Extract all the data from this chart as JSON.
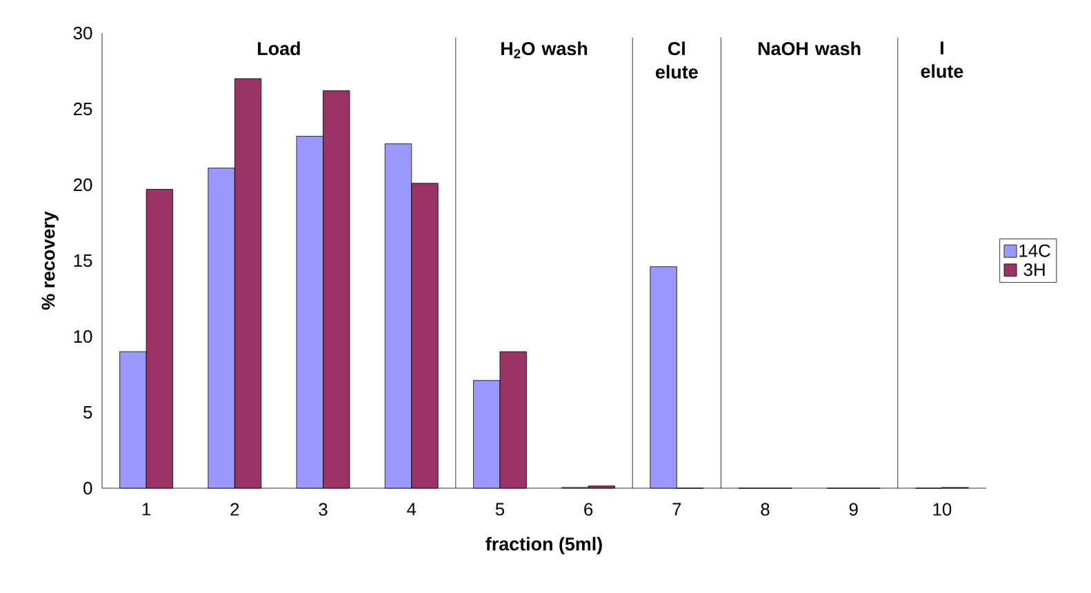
{
  "chart_data": {
    "type": "bar",
    "xlabel": "fraction (5ml)",
    "ylabel": "% recovery",
    "x": [
      1,
      2,
      3,
      4,
      5,
      6,
      7,
      8,
      9,
      10
    ],
    "xlim": [
      0.5,
      10.5
    ],
    "xticks": [
      1,
      2,
      3,
      4,
      5,
      6,
      7,
      8,
      9,
      10
    ],
    "series": [
      {
        "name": "14C",
        "color": "#9999ff",
        "values": [
          9.0,
          21.1,
          23.2,
          22.7,
          7.1,
          0.05,
          14.6,
          0,
          0,
          0
        ]
      },
      {
        "name": "3H",
        "color": "#993366",
        "values": [
          19.7,
          27.0,
          26.2,
          20.1,
          9.0,
          0.15,
          0,
          0,
          0,
          0.05
        ]
      }
    ],
    "ylim": [
      0,
      30
    ],
    "yticks": [
      0,
      5,
      10,
      15,
      20,
      25,
      30
    ],
    "grid": false,
    "legend": "right",
    "ref_lines": [
      {
        "axis": "x",
        "value": 4.5
      },
      {
        "axis": "x",
        "value": 6.5
      },
      {
        "axis": "x",
        "value": 7.5
      },
      {
        "axis": "x",
        "value": 9.5
      }
    ],
    "annotations": [
      "**Load**",
      "**H$_{2}$O wash**",
      "**Cl elute**",
      "**NaOH wash**",
      "**I elute**"
    ]
  }
}
